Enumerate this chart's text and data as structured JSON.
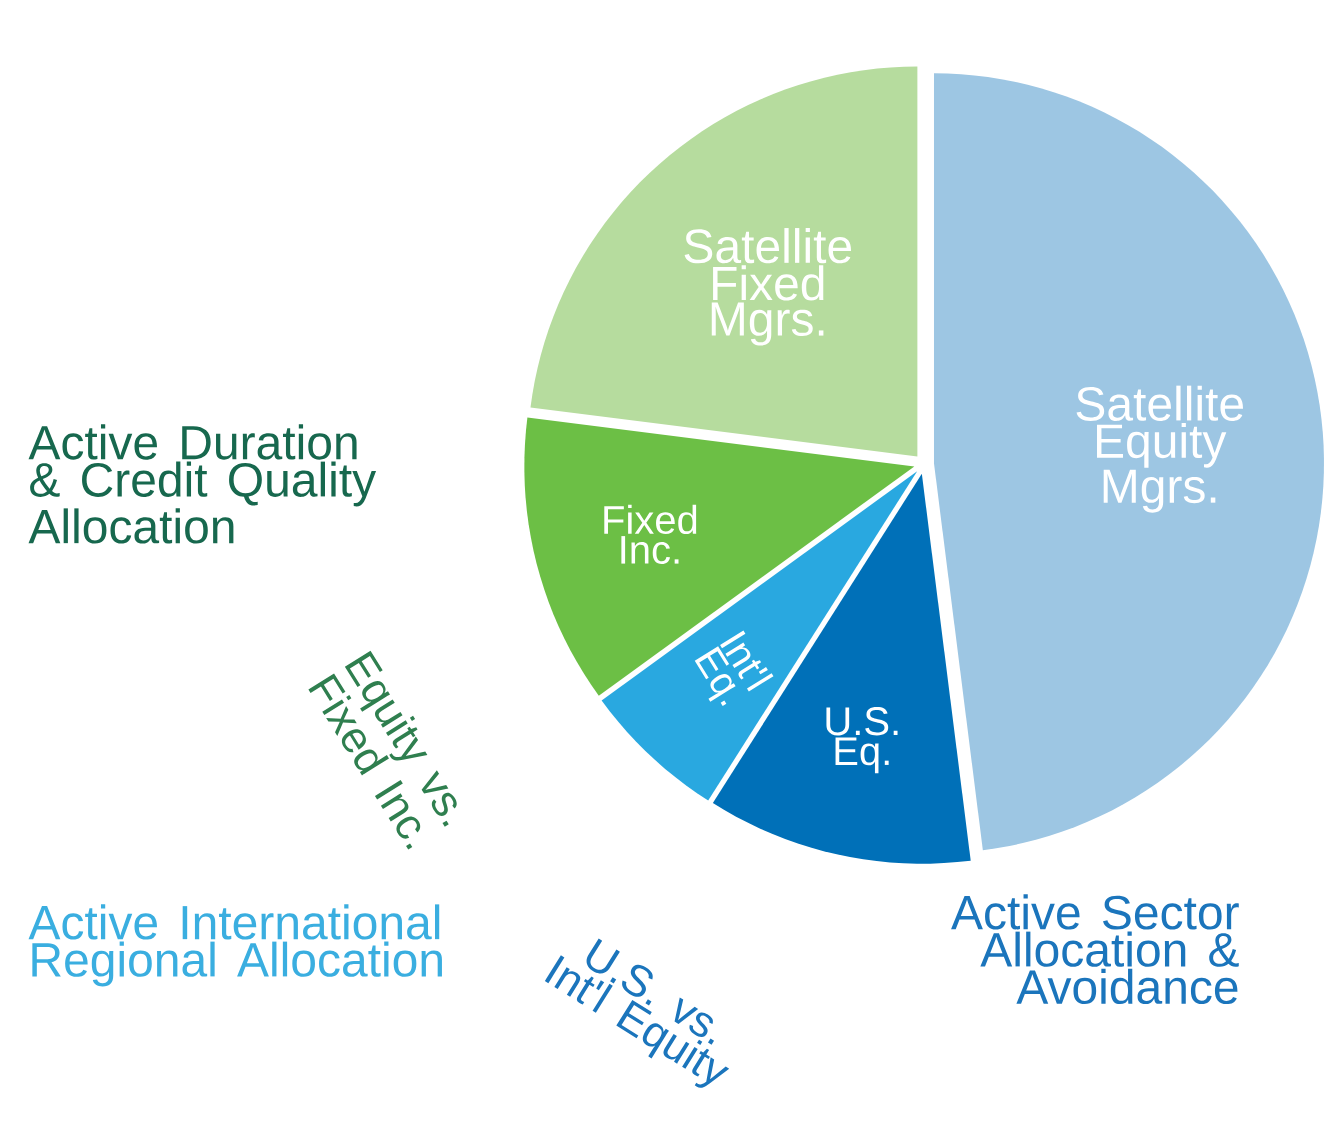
{
  "chart_data": {
    "type": "pie",
    "categories": [
      "Satellite Equity Mgrs.",
      "U.S. Eq.",
      "Int'l Eq.",
      "Fixed Inc.",
      "Satellite Fixed Mgrs."
    ],
    "values": [
      48,
      11,
      6,
      12,
      23
    ],
    "colors": [
      "#9dc6e3",
      "#0070b8",
      "#29a8e0",
      "#6cbf45",
      "#b6dc9e"
    ],
    "annotations": [
      "Active Duration & Credit Quality Allocation",
      "Equity vs. Fixed Inc.",
      "Active International Regional Allocation",
      "U.S. vs. Int'l Equity",
      "Active Sector Allocation & Avoidance"
    ]
  }
}
